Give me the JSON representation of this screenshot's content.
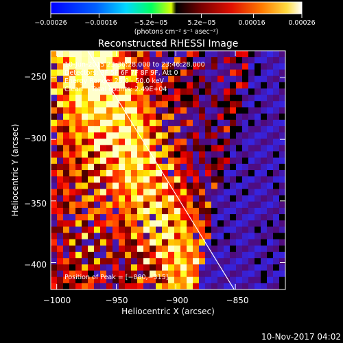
{
  "chart_data": {
    "type": "heatmap",
    "title": "Reconstructed RHESSI Image",
    "xlabel": "Heliocentric X (arcsec)",
    "ylabel": "Heliocentric Y (arcsec)",
    "xlim": [
      -1005,
      -808
    ],
    "ylim": [
      -422,
      -228
    ],
    "x_ticks": [
      -1000,
      -950,
      -900,
      -850
    ],
    "y_ticks": [
      -250,
      -300,
      -350,
      -400
    ],
    "x_tick_labels": [
      "−1000",
      "−950",
      "−900",
      "−850"
    ],
    "y_tick_labels": [
      "−250",
      "−300",
      "−350",
      "−400"
    ],
    "colorbar": {
      "min": -0.00026,
      "max": 0.00026,
      "ticks": [
        -0.00026,
        -0.00016,
        -5.2e-05,
        5.2e-05,
        0.00016,
        0.00026
      ],
      "tick_labels": [
        "−0.00026",
        "−0.00016",
        "−5.2e−05",
        "5.2e−05",
        "0.00016",
        "0.00026"
      ],
      "unit_label": "(photons cm⁻² s⁻¹ asec⁻²)",
      "colormap": "rainbow-to-hot"
    },
    "annotations": [
      "10-Jun-2015 23:36:28.000 to 23:46:28.000",
      "Detectors: 3F 5F 6F 7F 8F 9F, Att 0",
      "Energy Range: 25.0 - 50.0 keV",
      "Clean    Total counts: 2.49E+04",
      "Position of Peak = [−880,−315]"
    ],
    "peak": {
      "x": -880,
      "y": -315
    },
    "limb_line": {
      "x": [
        -974,
        -851
      ],
      "y": [
        -228,
        -422
      ]
    },
    "grid": false
  },
  "footer": {
    "timestamp": "10-Nov-2017 04:02"
  },
  "colors": {
    "background": "#000000",
    "text": "#ffffff",
    "limb": "#ffffff"
  }
}
